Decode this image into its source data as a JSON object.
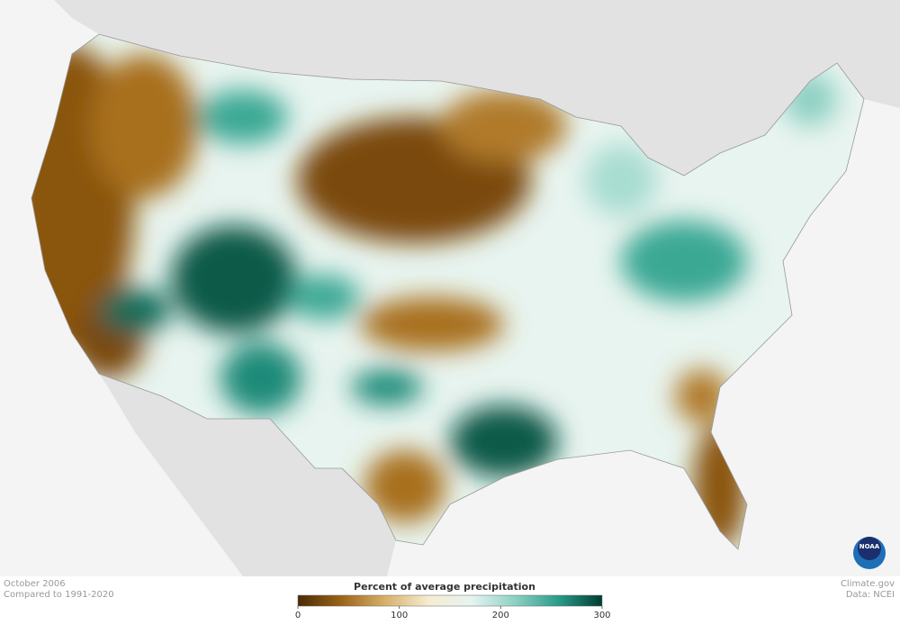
{
  "map": {
    "date": "October 2006",
    "baseline": "Compared to 1991-2020",
    "legend": {
      "title": "Percent of average precipitation",
      "range": [
        0,
        300
      ],
      "ticks": [
        0,
        100,
        200,
        300
      ],
      "colors": [
        "#4a2a05",
        "#9c6418",
        "#d7b06a",
        "#f6ecd0",
        "#e6f4f1",
        "#8dd0c3",
        "#2a9c8a",
        "#003c30"
      ]
    },
    "credit": "Climate.gov",
    "source": "Data: NCEI",
    "logo": "NOAA"
  }
}
